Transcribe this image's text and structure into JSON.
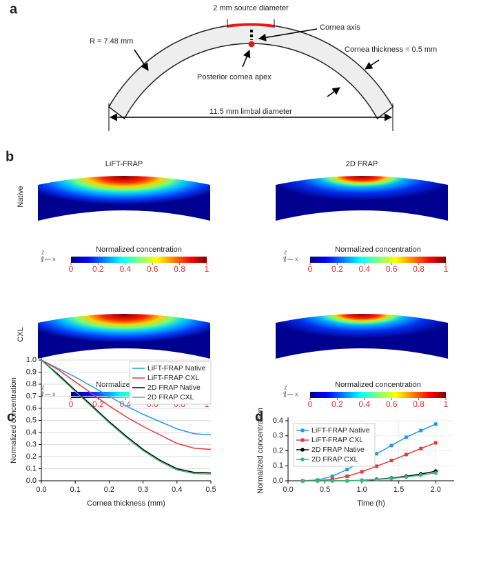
{
  "diagram": {
    "label": "a",
    "source": "2 mm source diameter",
    "axis": "Cornea axis",
    "radius": "R = 7.48 mm",
    "thickness": "Cornea thickness = 0.5 mm",
    "apex": "Posterior cornea apex",
    "limbal": "11.5 mm limbal diameter"
  },
  "heatmaps": {
    "label": "b",
    "columns": [
      "LiFT-FRAP",
      "2D FRAP"
    ],
    "rows": [
      "Native",
      "CXL"
    ],
    "colorbar": {
      "title": "Normalized concentration",
      "ticks": [
        0,
        0.2,
        0.4,
        0.6,
        0.8,
        1
      ],
      "lim": [
        0,
        1
      ],
      "tick_color": "#e03030"
    },
    "axes": {
      "z": "z",
      "y": "y",
      "x": "x"
    }
  },
  "chart_data": [
    {
      "type": "line",
      "panel_label": "c",
      "xlabel": "Cornea thickness (mm)",
      "ylabel": "Normalized concentration",
      "x": [
        0,
        0.05,
        0.1,
        0.15,
        0.2,
        0.25,
        0.3,
        0.35,
        0.4,
        0.45,
        0.5
      ],
      "xlim": [
        0,
        0.5
      ],
      "xticks": [
        {
          "value": 0,
          "label": "0.0"
        },
        0.1,
        0.2,
        0.3,
        0.4,
        0.5
      ],
      "ylim": [
        0,
        1
      ],
      "yticks": [
        {
          "value": 0,
          "label": "0.0"
        },
        0.1,
        0.2,
        0.3,
        0.4,
        0.5,
        0.6,
        0.7,
        0.8,
        0.9,
        {
          "value": 1,
          "label": "1.0"
        }
      ],
      "grid": "y",
      "legend": "upper right",
      "series": [
        {
          "name": "LiFT-FRAP Native",
          "color": "#1e9be8",
          "values": [
            1.0,
            0.93,
            0.86,
            0.78,
            0.7,
            0.62,
            0.55,
            0.49,
            0.43,
            0.39,
            0.38
          ]
        },
        {
          "name": "LiFT-FRAP CXL",
          "color": "#e8383c",
          "values": [
            1.0,
            0.92,
            0.82,
            0.72,
            0.62,
            0.53,
            0.45,
            0.38,
            0.31,
            0.27,
            0.26
          ]
        },
        {
          "name": "2D FRAP Native",
          "color": "#000000",
          "values": [
            1.0,
            0.88,
            0.75,
            0.62,
            0.49,
            0.37,
            0.26,
            0.17,
            0.1,
            0.07,
            0.065
          ]
        },
        {
          "name": "2D FRAP CXL",
          "color": "#3cb878",
          "values": [
            1.0,
            0.87,
            0.74,
            0.61,
            0.48,
            0.36,
            0.25,
            0.16,
            0.09,
            0.06,
            0.055
          ]
        }
      ]
    },
    {
      "type": "line",
      "panel_label": "d",
      "xlabel": "Time (h)",
      "ylabel": "Normalized concentration",
      "x": [
        0.2,
        0.4,
        0.6,
        0.8,
        1.0,
        1.2,
        1.4,
        1.6,
        1.8,
        2.0
      ],
      "xlim": [
        0,
        2.25
      ],
      "xticks": [
        {
          "value": 0,
          "label": "0.0"
        },
        0.5,
        {
          "value": 1,
          "label": "1.0"
        },
        1.5,
        {
          "value": 2,
          "label": "2.0"
        }
      ],
      "ylim": [
        0,
        0.4
      ],
      "yticks": [
        {
          "value": 0,
          "label": "0.0"
        },
        0.1,
        0.2,
        0.3,
        0.4
      ],
      "grid": "both",
      "legend": "upper left",
      "series": [
        {
          "name": "LiFT-FRAP Native",
          "color": "#1e9be8",
          "marker": "square",
          "values": [
            0,
            0.005,
            0.03,
            0.075,
            0.13,
            0.18,
            0.235,
            0.29,
            0.335,
            0.378
          ]
        },
        {
          "name": "LiFT-FRAP CXL",
          "color": "#e8383c",
          "marker": "square",
          "values": [
            0,
            0,
            0.01,
            0.03,
            0.06,
            0.097,
            0.135,
            0.175,
            0.215,
            0.253
          ]
        },
        {
          "name": "2D FRAP Native",
          "color": "#000000",
          "marker": "circle",
          "values": [
            0,
            0,
            0,
            0,
            0.003,
            0.01,
            0.018,
            0.03,
            0.045,
            0.064
          ]
        },
        {
          "name": "2D FRAP CXL",
          "color": "#3cb878",
          "marker": "circle",
          "values": [
            0,
            0,
            0,
            0,
            0.002,
            0.008,
            0.015,
            0.025,
            0.038,
            0.052
          ]
        }
      ]
    }
  ]
}
